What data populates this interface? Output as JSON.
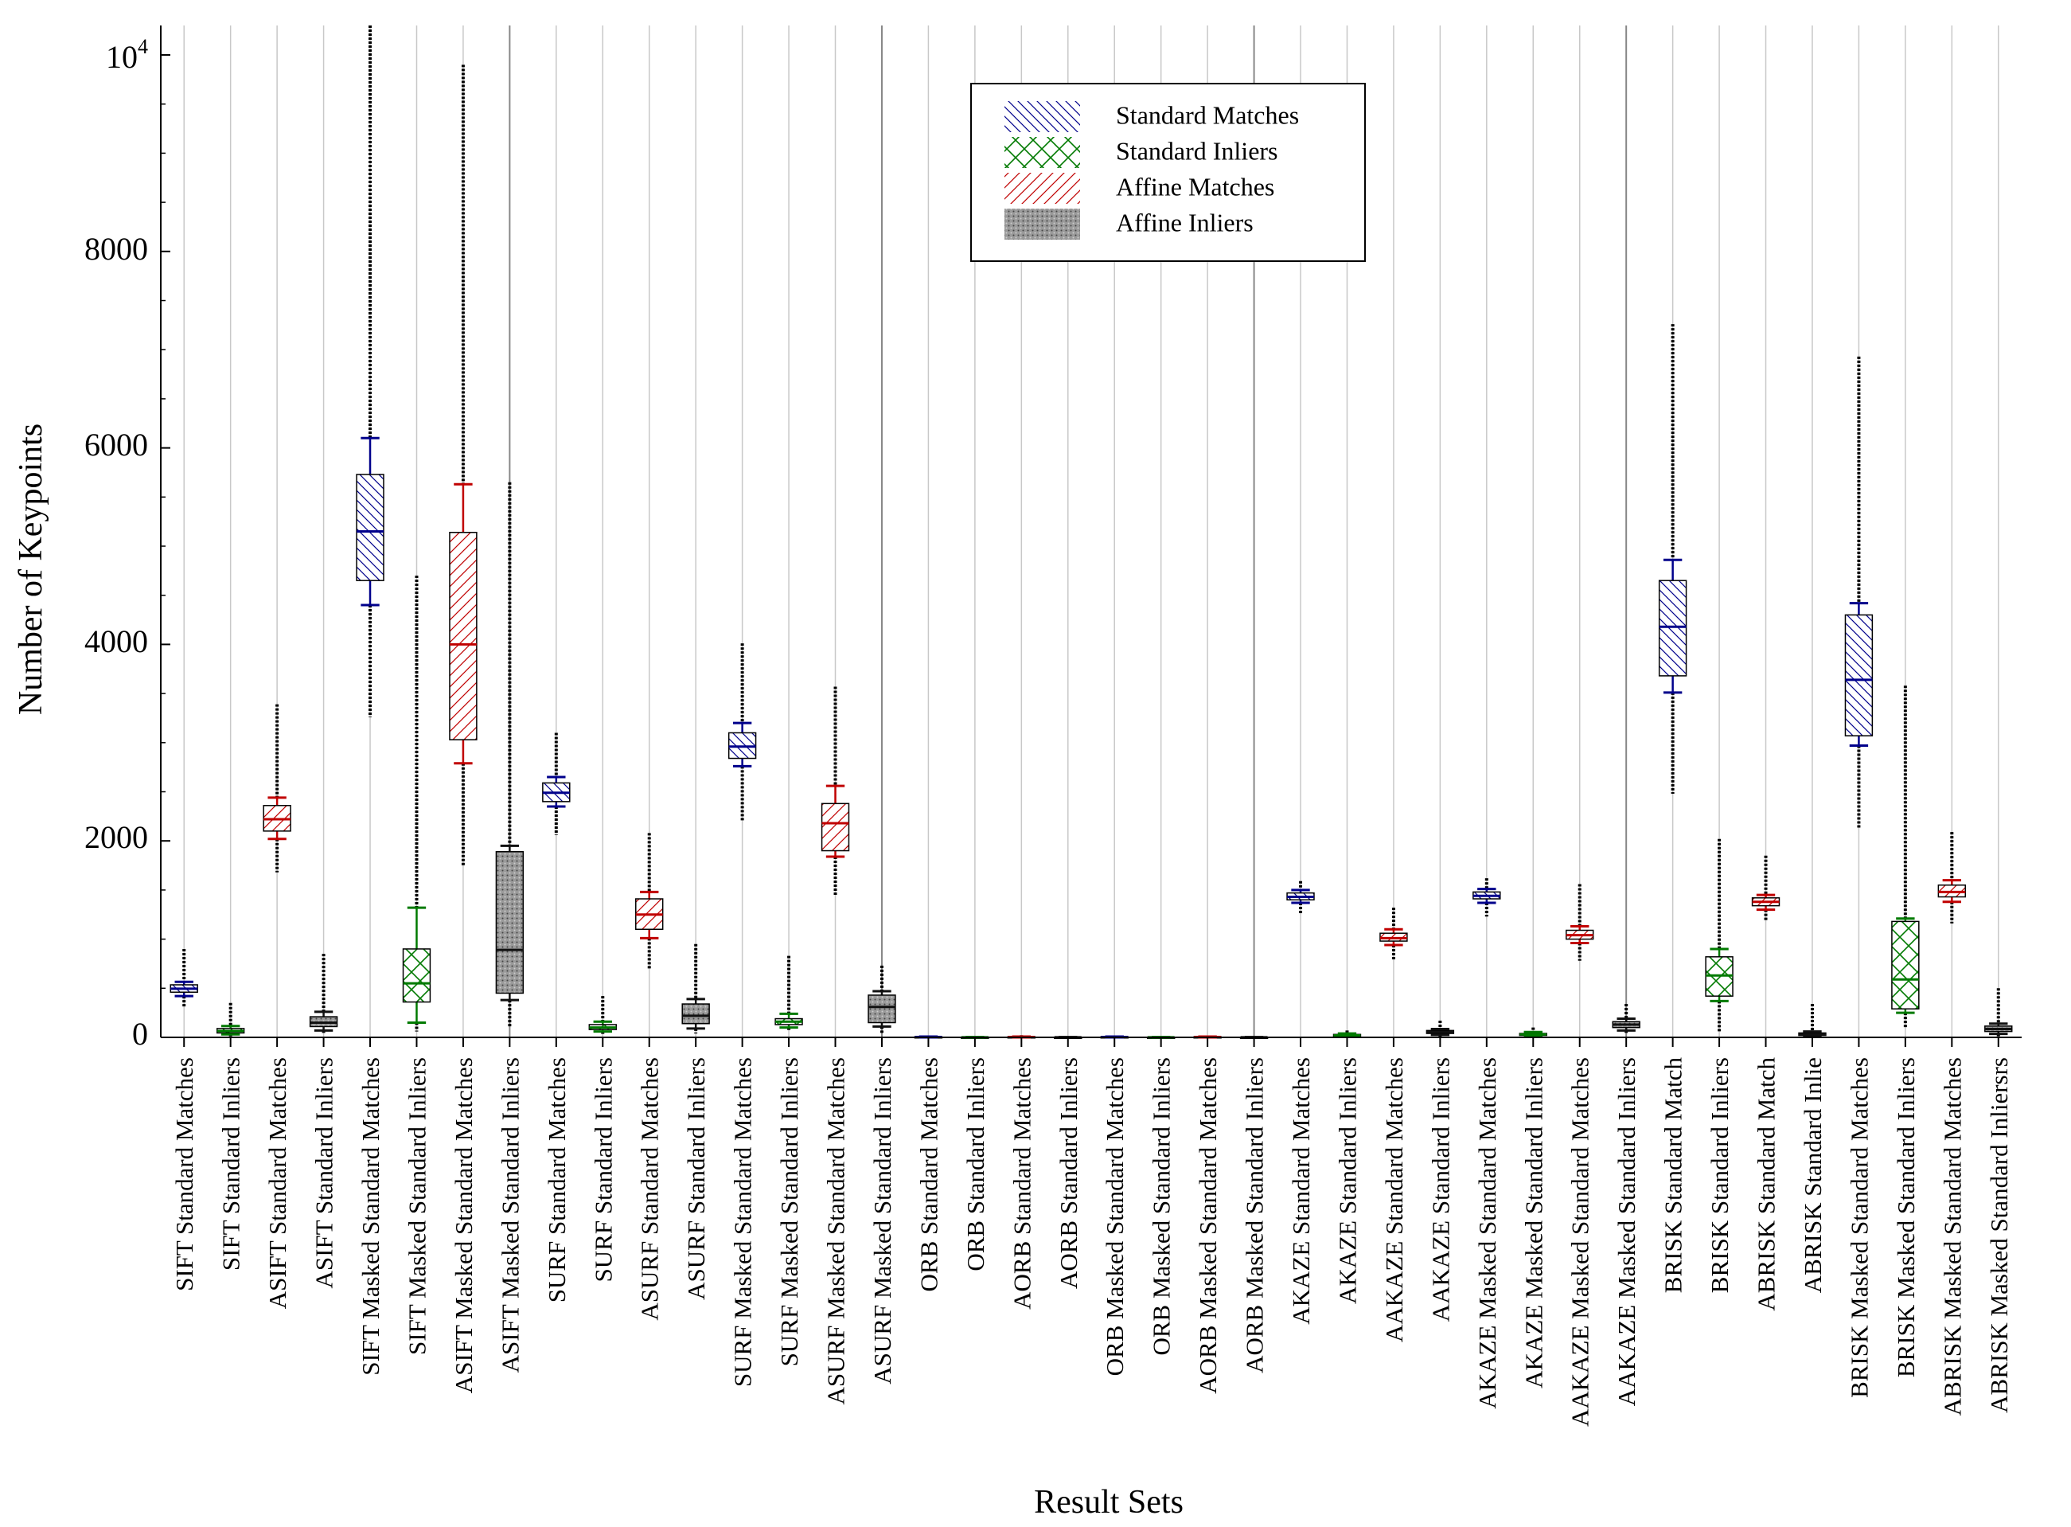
{
  "chart_data": {
    "type": "boxplot",
    "title": "",
    "xlabel": "Result Sets",
    "ylabel": "Number of Keypoints",
    "ylim": [
      0,
      10300
    ],
    "yticks": [
      0,
      2000,
      4000,
      6000,
      8000
    ],
    "ytick_labels": [
      "0",
      "2000",
      "4000",
      "6000",
      "8000"
    ],
    "ytop_label_base": "10",
    "ytop_label_exp": "4",
    "ytop_value": 10000,
    "grid": "vertical",
    "legend_position": "top-center",
    "legend": [
      {
        "name": "Standard Matches",
        "color": "#00008b",
        "pattern": "diag-back"
      },
      {
        "name": "Standard Inliers",
        "color": "#007a00",
        "pattern": "cross"
      },
      {
        "name": "Affine Matches",
        "color": "#c00000",
        "pattern": "diag-fwd"
      },
      {
        "name": "Affine Inliers",
        "color": "#333333",
        "pattern": "dots"
      }
    ],
    "categories": [
      "SIFT Standard Matches",
      "SIFT Standard Inliers",
      "ASIFT Standard Matches",
      "ASIFT Standard Inliers",
      "SIFT Masked Standard Matches",
      "SIFT Masked Standard Inliers",
      "ASIFT Masked Standard Matches",
      "ASIFT Masked Standard Inliers",
      "SURF Standard Matches",
      "SURF Standard Inliers",
      "ASURF Standard Matches",
      "ASURF Standard Inliers",
      "SURF Masked Standard Matches",
      "SURF Masked Standard Inliers",
      "ASURF Masked Standard Matches",
      "ASURF Masked Standard Inliers",
      "ORB Standard Matches",
      "ORB Standard Inliers",
      "AORB Standard Matches",
      "AORB Standard Inliers",
      "ORB Masked Standard Matches",
      "ORB Masked Standard Inliers",
      "AORB Masked Standard Matches",
      "AORB Masked Standard Inliers",
      "AKAZE Standard Matches",
      "AKAZE Standard Inliers",
      "AAKAZE Standard Matches",
      "AAKAZE Standard Inliers",
      "AKAZE Masked Standard Matches",
      "AKAZE Masked Standard Inliers",
      "AAKAZE Masked Standard Matches",
      "AAKAZE Masked Standard Inliers",
      "BRISK Standard Match",
      "BRISK Standard Inliers",
      "ABRISK Standard Match",
      "ABRISK Standard Inlie",
      "BRISK Masked Standard Matches",
      "BRISK Masked Standard Inliers",
      "ABRISK Masked Standard Matches",
      "ABRISK Masked Standard Inliersrs"
    ],
    "boxes": [
      {
        "s": 0,
        "q1": 460,
        "median": 495,
        "q3": 535,
        "wlo": 420,
        "whi": 565,
        "omin": 300,
        "omax": 900
      },
      {
        "s": 1,
        "q1": 45,
        "median": 65,
        "q3": 90,
        "wlo": 30,
        "whi": 115,
        "omin": 10,
        "omax": 350
      },
      {
        "s": 2,
        "q1": 2100,
        "median": 2220,
        "q3": 2360,
        "wlo": 2020,
        "whi": 2440,
        "omin": 1680,
        "omax": 3390
      },
      {
        "s": 3,
        "q1": 110,
        "median": 150,
        "q3": 210,
        "wlo": 70,
        "whi": 260,
        "omin": 30,
        "omax": 850
      },
      {
        "s": 0,
        "q1": 4650,
        "median": 5150,
        "q3": 5730,
        "wlo": 4400,
        "whi": 6100,
        "omin": 3260,
        "omax": 10300
      },
      {
        "s": 1,
        "q1": 360,
        "median": 550,
        "q3": 900,
        "wlo": 150,
        "whi": 1320,
        "omin": 60,
        "omax": 4700
      },
      {
        "s": 2,
        "q1": 3030,
        "median": 4000,
        "q3": 5140,
        "wlo": 2790,
        "whi": 5630,
        "omin": 1750,
        "omax": 9900
      },
      {
        "s": 3,
        "q1": 450,
        "median": 890,
        "q3": 1890,
        "wlo": 380,
        "whi": 1950,
        "omin": 100,
        "omax": 5650
      },
      {
        "s": 0,
        "q1": 2400,
        "median": 2490,
        "q3": 2590,
        "wlo": 2350,
        "whi": 2650,
        "omin": 2060,
        "omax": 3100
      },
      {
        "s": 1,
        "q1": 80,
        "median": 100,
        "q3": 130,
        "wlo": 60,
        "whi": 160,
        "omin": 30,
        "omax": 420
      },
      {
        "s": 2,
        "q1": 1100,
        "median": 1250,
        "q3": 1410,
        "wlo": 1010,
        "whi": 1480,
        "omin": 700,
        "omax": 2080
      },
      {
        "s": 3,
        "q1": 140,
        "median": 220,
        "q3": 340,
        "wlo": 90,
        "whi": 390,
        "omin": 40,
        "omax": 950
      },
      {
        "s": 0,
        "q1": 2840,
        "median": 2960,
        "q3": 3100,
        "wlo": 2760,
        "whi": 3200,
        "omin": 2200,
        "omax": 4010
      },
      {
        "s": 1,
        "q1": 130,
        "median": 160,
        "q3": 190,
        "wlo": 100,
        "whi": 240,
        "omin": 60,
        "omax": 830
      },
      {
        "s": 2,
        "q1": 1900,
        "median": 2180,
        "q3": 2380,
        "wlo": 1840,
        "whi": 2560,
        "omin": 1450,
        "omax": 3570
      },
      {
        "s": 3,
        "q1": 150,
        "median": 310,
        "q3": 430,
        "wlo": 110,
        "whi": 470,
        "omin": 40,
        "omax": 730
      },
      {
        "s": 0,
        "q1": 2,
        "median": 4,
        "q3": 6,
        "wlo": 0,
        "whi": 8,
        "omin": 0,
        "omax": 20
      },
      {
        "s": 1,
        "q1": 0,
        "median": 1,
        "q3": 2,
        "wlo": 0,
        "whi": 3,
        "omin": 0,
        "omax": 6
      },
      {
        "s": 2,
        "q1": 2,
        "median": 4,
        "q3": 6,
        "wlo": 0,
        "whi": 8,
        "omin": 0,
        "omax": 22
      },
      {
        "s": 3,
        "q1": 0,
        "median": 1,
        "q3": 2,
        "wlo": 0,
        "whi": 3,
        "omin": 0,
        "omax": 6
      },
      {
        "s": 0,
        "q1": 2,
        "median": 4,
        "q3": 6,
        "wlo": 0,
        "whi": 8,
        "omin": 0,
        "omax": 20
      },
      {
        "s": 1,
        "q1": 0,
        "median": 1,
        "q3": 2,
        "wlo": 0,
        "whi": 3,
        "omin": 0,
        "omax": 6
      },
      {
        "s": 2,
        "q1": 2,
        "median": 4,
        "q3": 6,
        "wlo": 0,
        "whi": 8,
        "omin": 0,
        "omax": 20
      },
      {
        "s": 3,
        "q1": 0,
        "median": 1,
        "q3": 2,
        "wlo": 0,
        "whi": 3,
        "omin": 0,
        "omax": 6
      },
      {
        "s": 0,
        "q1": 1400,
        "median": 1430,
        "q3": 1470,
        "wlo": 1370,
        "whi": 1500,
        "omin": 1250,
        "omax": 1590
      },
      {
        "s": 1,
        "q1": 10,
        "median": 20,
        "q3": 30,
        "wlo": 5,
        "whi": 40,
        "omin": 0,
        "omax": 70
      },
      {
        "s": 2,
        "q1": 980,
        "median": 1010,
        "q3": 1060,
        "wlo": 940,
        "whi": 1100,
        "omin": 790,
        "omax": 1320
      },
      {
        "s": 3,
        "q1": 40,
        "median": 55,
        "q3": 70,
        "wlo": 25,
        "whi": 85,
        "omin": 5,
        "omax": 170
      },
      {
        "s": 0,
        "q1": 1410,
        "median": 1440,
        "q3": 1480,
        "wlo": 1370,
        "whi": 1510,
        "omin": 1230,
        "omax": 1620
      },
      {
        "s": 1,
        "q1": 20,
        "median": 30,
        "q3": 40,
        "wlo": 10,
        "whi": 55,
        "omin": 0,
        "omax": 100
      },
      {
        "s": 2,
        "q1": 1000,
        "median": 1040,
        "q3": 1090,
        "wlo": 960,
        "whi": 1130,
        "omin": 780,
        "omax": 1560
      },
      {
        "s": 3,
        "q1": 100,
        "median": 130,
        "q3": 160,
        "wlo": 70,
        "whi": 190,
        "omin": 30,
        "omax": 340
      },
      {
        "s": 0,
        "q1": 3680,
        "median": 4180,
        "q3": 4650,
        "wlo": 3510,
        "whi": 4860,
        "omin": 2480,
        "omax": 7260
      },
      {
        "s": 1,
        "q1": 420,
        "median": 630,
        "q3": 820,
        "wlo": 370,
        "whi": 900,
        "omin": 50,
        "omax": 2020
      },
      {
        "s": 2,
        "q1": 1340,
        "median": 1380,
        "q3": 1420,
        "wlo": 1300,
        "whi": 1450,
        "omin": 1180,
        "omax": 1850
      },
      {
        "s": 3,
        "q1": 20,
        "median": 30,
        "q3": 45,
        "wlo": 10,
        "whi": 60,
        "omin": 0,
        "omax": 340
      },
      {
        "s": 0,
        "q1": 3070,
        "median": 3640,
        "q3": 4300,
        "wlo": 2970,
        "whi": 4420,
        "omin": 2130,
        "omax": 6930
      },
      {
        "s": 1,
        "q1": 290,
        "median": 590,
        "q3": 1180,
        "wlo": 250,
        "whi": 1210,
        "omin": 90,
        "omax": 3580
      },
      {
        "s": 2,
        "q1": 1430,
        "median": 1480,
        "q3": 1550,
        "wlo": 1380,
        "whi": 1600,
        "omin": 1160,
        "omax": 2090
      },
      {
        "s": 3,
        "q1": 60,
        "median": 85,
        "q3": 115,
        "wlo": 35,
        "whi": 140,
        "omin": 10,
        "omax": 500
      }
    ]
  }
}
